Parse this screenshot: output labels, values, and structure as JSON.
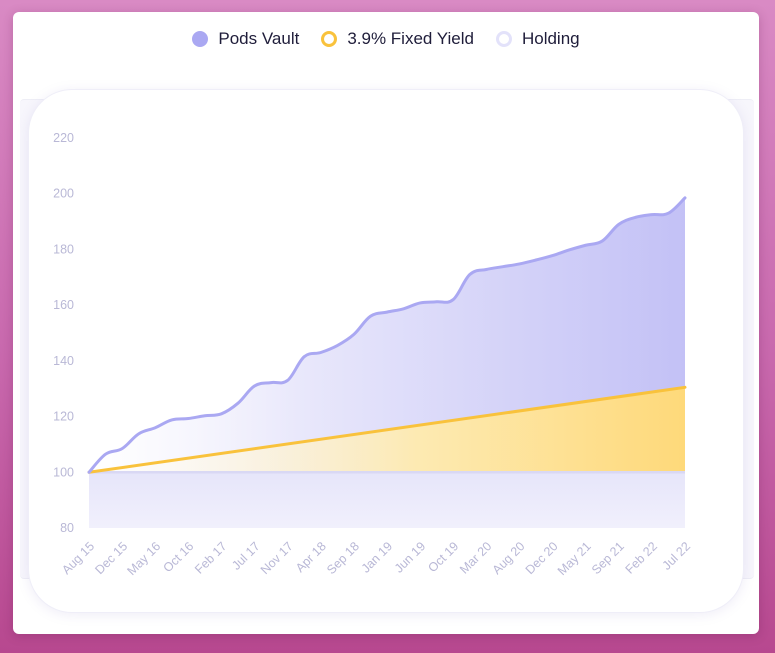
{
  "colors": {
    "pods_vault": "#aaa8f2",
    "fixed_yield": "#f9c23c",
    "holding": "#e3e2fa"
  },
  "chart_data": {
    "type": "area",
    "title": "",
    "xlabel": "",
    "ylabel": "",
    "legend": "top-center",
    "grid": false,
    "ylim": [
      80,
      220
    ],
    "yticks": [
      80,
      100,
      120,
      140,
      160,
      180,
      200,
      220
    ],
    "categories": [
      "Aug 15",
      "Dec 15",
      "May 16",
      "Oct 16",
      "Feb 17",
      "Jul 17",
      "Nov 17",
      "Apr 18",
      "Sep 18",
      "Jan 19",
      "Jun 19",
      "Oct 19",
      "Mar 20",
      "Aug 20",
      "Dec 20",
      "May 21",
      "Sep 21",
      "Feb 22",
      "Jul 22"
    ],
    "series": [
      {
        "name": "Pods Vault",
        "color": "#aaa8f2",
        "x": [
          0,
          0.5,
          1,
          1.5,
          2,
          2.5,
          3,
          3.5,
          4,
          4.5,
          5,
          5.5,
          6,
          6.5,
          7,
          7.5,
          8,
          8.5,
          9,
          9.5,
          10,
          10.5,
          11,
          11.5,
          12,
          12.5,
          13,
          13.5,
          14,
          14.5,
          15,
          15.5,
          16,
          16.5,
          17,
          17.5,
          18
        ],
        "values": [
          100,
          106.5,
          108.5,
          113.8,
          116,
          118.8,
          119.3,
          120.3,
          121,
          124.8,
          131,
          132.2,
          133,
          141.5,
          143,
          145.5,
          149.5,
          156,
          157.5,
          158.7,
          160.8,
          161.2,
          162,
          171,
          172.8,
          173.8,
          174.8,
          176.2,
          177.8,
          179.8,
          181.5,
          183,
          189,
          191.5,
          192.5,
          193,
          198.5
        ]
      },
      {
        "name": "3.9% Fixed Yield",
        "color": "#f9c23c",
        "x": [
          0,
          18
        ],
        "values": [
          100,
          130.5
        ]
      },
      {
        "name": "Holding",
        "color": "#e3e2fa",
        "x": [
          0,
          18
        ],
        "values": [
          100,
          100
        ]
      }
    ]
  }
}
